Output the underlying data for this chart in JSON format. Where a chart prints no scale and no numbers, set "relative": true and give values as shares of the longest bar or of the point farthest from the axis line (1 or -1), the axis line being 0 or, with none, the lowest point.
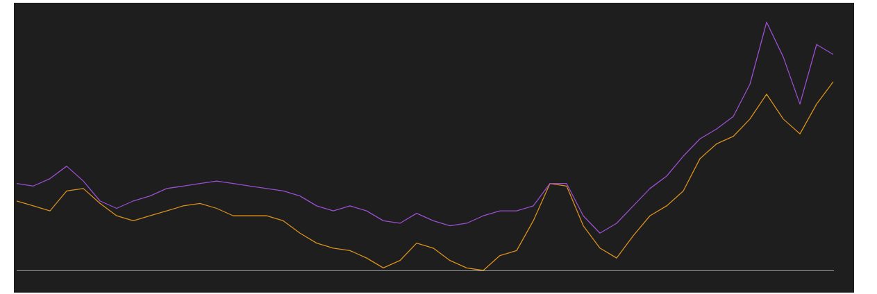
{
  "chart_data": {
    "type": "line",
    "relative": true,
    "categories": [
      null,
      null,
      null,
      null,
      null,
      null,
      null,
      null,
      null,
      null,
      null,
      null,
      null,
      null,
      null,
      null,
      null,
      null,
      null,
      null,
      null,
      null,
      null,
      null,
      null,
      null,
      null,
      null,
      null,
      null,
      null,
      null,
      null,
      null,
      null,
      null,
      null,
      null,
      null,
      null,
      null,
      null,
      null,
      null,
      null,
      null,
      null,
      null,
      null,
      null
    ],
    "series": [
      {
        "color": "#9b4fd0",
        "values": [
          0.35,
          0.34,
          0.37,
          0.42,
          0.36,
          0.28,
          0.25,
          0.28,
          0.3,
          0.33,
          0.34,
          0.35,
          0.36,
          0.35,
          0.34,
          0.33,
          0.32,
          0.3,
          0.26,
          0.24,
          0.26,
          0.24,
          0.2,
          0.19,
          0.23,
          0.2,
          0.18,
          0.19,
          0.22,
          0.24,
          0.24,
          0.26,
          0.35,
          0.35,
          0.22,
          0.15,
          0.19,
          0.26,
          0.33,
          0.38,
          0.46,
          0.53,
          0.57,
          0.62,
          0.75,
          1,
          0.86,
          0.67,
          0.91,
          0.87
        ]
      },
      {
        "color": "#d9901e",
        "values": [
          0.28,
          0.26,
          0.24,
          0.32,
          0.33,
          0.27,
          0.22,
          0.2,
          0.22,
          0.24,
          0.26,
          0.27,
          0.25,
          0.22,
          0.22,
          0.22,
          0.2,
          0.15,
          0.11,
          0.09,
          0.08,
          0.05,
          0.01,
          0.04,
          0.11,
          0.09,
          0.04,
          0.01,
          0,
          0.06,
          0.08,
          0.2,
          0.35,
          0.34,
          0.18,
          0.09,
          0.05,
          0.14,
          0.22,
          0.26,
          0.32,
          0.45,
          0.51,
          0.54,
          0.61,
          0.71,
          0.61,
          0.55,
          0.67,
          0.76
        ]
      }
    ],
    "marker": "none"
  }
}
